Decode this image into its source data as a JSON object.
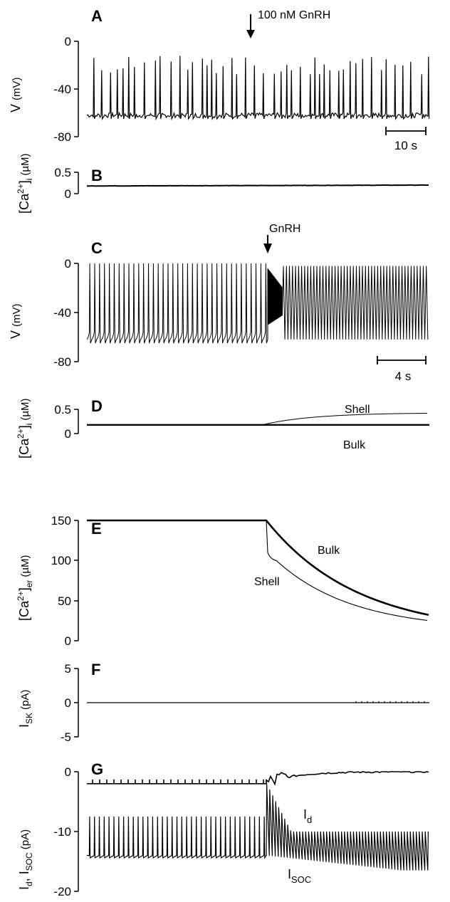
{
  "chart_data": [
    {
      "panel": "A",
      "type": "line",
      "ylabel": "V (mV)",
      "yticks": [
        "0",
        "-40",
        "-80"
      ],
      "ylim": [
        -80,
        0
      ],
      "annotation": "100 nM GnRH",
      "scalebar": "10 s",
      "series": [
        {
          "baseline": -62,
          "spike_peak": -20,
          "spike_count": 62
        }
      ]
    },
    {
      "panel": "B",
      "type": "line",
      "ylabel": "[Ca2+]i (µM)",
      "yticks": [
        "0.5",
        "0"
      ],
      "ylim": [
        0,
        0.5
      ],
      "series": [
        {
          "start": 0.18,
          "end": 0.2
        }
      ]
    },
    {
      "panel": "C",
      "type": "line",
      "ylabel": "V (mV)",
      "yticks": [
        "0",
        "-40",
        "-80"
      ],
      "ylim": [
        -80,
        0
      ],
      "annotation": "GnRH",
      "scalebar": "4 s",
      "series": [
        {
          "baseline": -62,
          "spike_peak": 0,
          "spikes_before": 37,
          "spikes_after": 48
        }
      ]
    },
    {
      "panel": "D",
      "type": "line",
      "ylabel": "[Ca2+]i (µM)",
      "yticks": [
        "0.5",
        "0"
      ],
      "ylim": [
        0,
        0.5
      ],
      "series": [
        {
          "name": "Shell",
          "start": 0.18,
          "end": 0.42
        },
        {
          "name": "Bulk",
          "start": 0.18,
          "end": 0.18
        }
      ]
    },
    {
      "panel": "E",
      "type": "line",
      "ylabel": "[Ca2+]er (µM)",
      "yticks": [
        "150",
        "100",
        "50",
        "0"
      ],
      "ylim": [
        0,
        150
      ],
      "series": [
        {
          "name": "Bulk",
          "start": 150,
          "end": 32
        },
        {
          "name": "Shell",
          "start": 150,
          "drop_to": 102,
          "end": 25
        }
      ]
    },
    {
      "panel": "F",
      "type": "line",
      "ylabel": "ISK (pA)",
      "yticks": [
        "5",
        "0",
        "-5"
      ],
      "ylim": [
        -5,
        5
      ],
      "series": [
        {
          "value": 0
        }
      ]
    },
    {
      "panel": "G",
      "type": "line",
      "ylabel": "Id, ISOC (pA)",
      "yticks": [
        "0",
        "-10",
        "-20"
      ],
      "ylim": [
        -20,
        0
      ],
      "series": [
        {
          "name": "Id",
          "start": -2,
          "end": 0
        },
        {
          "name": "ISOC",
          "start": -14,
          "end": -16.5
        }
      ]
    }
  ],
  "labels": {
    "panel_a": "A",
    "panel_b": "B",
    "panel_c": "C",
    "panel_d": "D",
    "panel_e": "E",
    "panel_f": "F",
    "panel_g": "G",
    "gnrh_a": "100 nM GnRH",
    "gnrh_c": "GnRH",
    "scalebar_a": "10 s",
    "scalebar_c": "4 s",
    "tick_a_0": "0",
    "tick_a_40": "-40",
    "tick_a_80": "-80",
    "tick_b_05": "0.5",
    "tick_b_0": "0",
    "tick_c_0": "0",
    "tick_c_40": "-40",
    "tick_c_80": "-80",
    "tick_d_05": "0.5",
    "tick_d_0": "0",
    "tick_e_150": "150",
    "tick_e_100": "100",
    "tick_e_50": "50",
    "tick_e_0": "0",
    "tick_f_5": "5",
    "tick_f_0": "0",
    "tick_f_m5": "-5",
    "tick_g_0": "0",
    "tick_g_10": "-10",
    "tick_g_20": "-20",
    "ylab_v_main": "V",
    "ylab_v_unit": "(mV)",
    "ylab_ca": "[Ca",
    "ylab_ca_sup": "2+",
    "ylab_ca_close": "]",
    "ylab_ca_sub_i": "i",
    "ylab_ca_unit": "(µM)",
    "ylab_ca_sub_er": "er",
    "ylab_isk_i": "I",
    "ylab_isk_sub": "SK",
    "ylab_isk_unit": "(pA)",
    "ylab_g_i": "I",
    "ylab_g_sub_d": "d",
    "ylab_g_comma": ", I",
    "ylab_g_sub_soc": "SOC",
    "ylab_g_unit": "(pA)",
    "shell_d": "Shell",
    "bulk_d": "Bulk",
    "bulk_e": "Bulk",
    "shell_e": "Shell",
    "id_i": "I",
    "id_sub": "d",
    "isoc_i": "I",
    "isoc_sub": "SOC"
  }
}
